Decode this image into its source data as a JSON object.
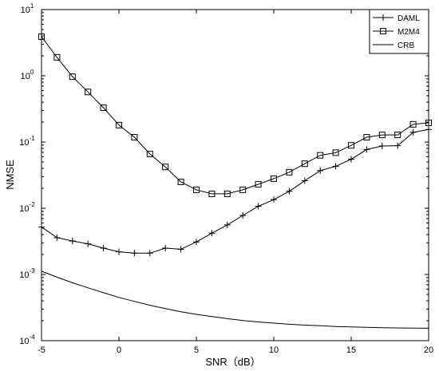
{
  "chart_data": {
    "type": "line",
    "title": "",
    "xlabel": "SNR（dB）",
    "ylabel": "NMSE",
    "xlim": [
      -5,
      20
    ],
    "ylim": [
      0.0001,
      10
    ],
    "yscale": "log",
    "grid": false,
    "legend_position": "top-right",
    "x_ticks": [
      "-5",
      "0",
      "5",
      "10",
      "15",
      "20"
    ],
    "x_tick_values": [
      -5,
      0,
      5,
      10,
      15,
      20
    ],
    "y_tick_values": [
      0.0001,
      0.001,
      0.01,
      0.1,
      1,
      10
    ],
    "y_tick_exponents": [
      "-4",
      "-3",
      "-2",
      "-1",
      "0",
      "1"
    ],
    "y_tick_base": "10",
    "series": [
      {
        "name": "DAML",
        "marker": "plus",
        "color": "#000000",
        "x": [
          -5,
          -4,
          -3,
          -2,
          -1,
          0,
          1,
          2,
          3,
          4,
          5,
          6,
          7,
          8,
          9,
          10,
          11,
          12,
          13,
          14,
          15,
          16,
          17,
          18,
          19,
          20
        ],
        "y": [
          0.0052,
          0.0036,
          0.0032,
          0.0029,
          0.0025,
          0.0022,
          0.0021,
          0.0021,
          0.0025,
          0.0024,
          0.0031,
          0.0042,
          0.0056,
          0.0078,
          0.0107,
          0.0135,
          0.018,
          0.026,
          0.037,
          0.043,
          0.055,
          0.077,
          0.087,
          0.088,
          0.14,
          0.155
        ]
      },
      {
        "name": "M2M4",
        "marker": "square",
        "color": "#000000",
        "x": [
          -5,
          -4,
          -3,
          -2,
          -1,
          0,
          1,
          2,
          3,
          4,
          5,
          6,
          7,
          8,
          9,
          10,
          11,
          12,
          13,
          14,
          15,
          16,
          17,
          18,
          19,
          20
        ],
        "y": [
          3.9,
          1.9,
          0.97,
          0.57,
          0.33,
          0.18,
          0.118,
          0.066,
          0.042,
          0.025,
          0.019,
          0.0165,
          0.0165,
          0.019,
          0.023,
          0.028,
          0.035,
          0.047,
          0.063,
          0.069,
          0.089,
          0.118,
          0.128,
          0.128,
          0.185,
          0.195
        ]
      },
      {
        "name": "CRB",
        "marker": "none",
        "color": "#000000",
        "x": [
          -5,
          -4,
          -3,
          -2,
          -1,
          0,
          1,
          2,
          3,
          4,
          5,
          6,
          7,
          8,
          9,
          10,
          11,
          12,
          13,
          14,
          15,
          16,
          17,
          18,
          19,
          20
        ],
        "y": [
          0.00112,
          0.00091,
          0.00075,
          0.00063,
          0.00053,
          0.00045,
          0.000392,
          0.000343,
          0.000305,
          0.000274,
          0.00025,
          0.000231,
          0.000215,
          0.000202,
          0.000192,
          0.000184,
          0.000177,
          0.000172,
          0.000168,
          0.000164,
          0.000161,
          0.000159,
          0.000157,
          0.000156,
          0.000155,
          0.000154
        ]
      }
    ]
  }
}
